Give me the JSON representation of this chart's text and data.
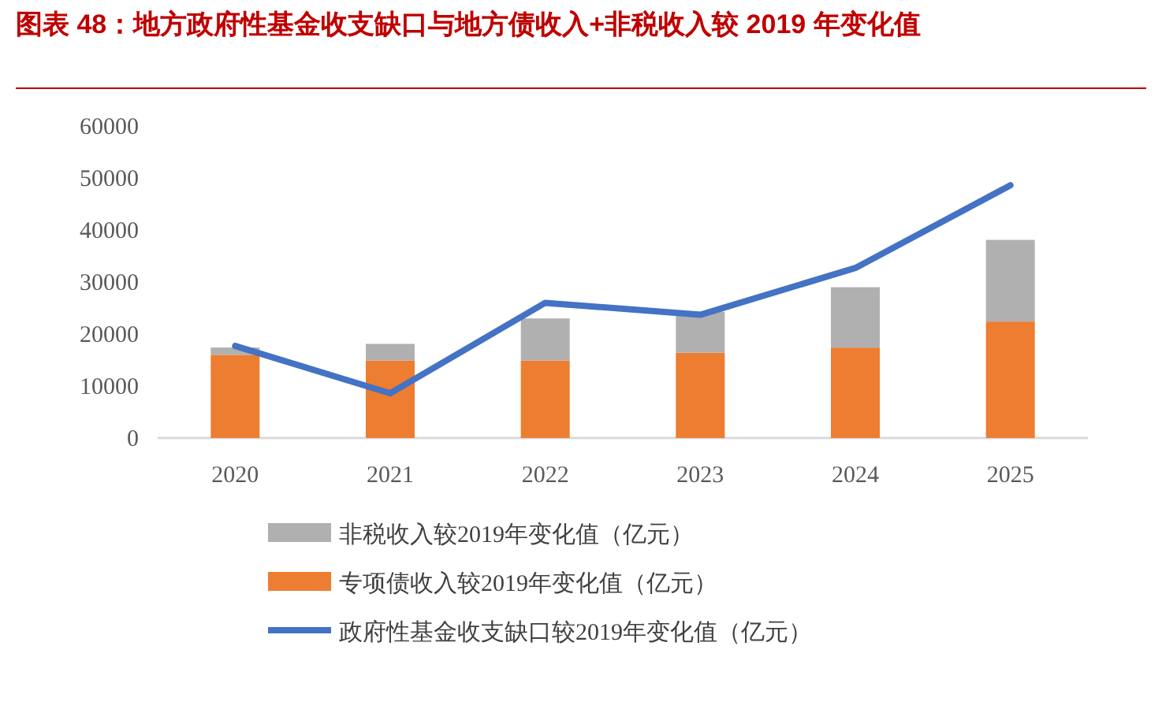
{
  "chart_data": {
    "type": "bar",
    "title": "图表 48：地方政府性基金收支缺口与地方债收入+非税收入较 2019 年变化值",
    "categories": [
      "2020",
      "2021",
      "2022",
      "2023",
      "2024",
      "2025"
    ],
    "stacked": true,
    "series": [
      {
        "name": "专项债收入较2019年变化值（亿元）",
        "color": "#ed7d31",
        "values": [
          16000,
          14900,
          14900,
          16400,
          17400,
          22400
        ]
      },
      {
        "name": "非税收入较2019年变化值（亿元）",
        "color": "#b0b0b0",
        "values": [
          1400,
          3200,
          8100,
          7900,
          11600,
          15700
        ]
      },
      {
        "name": "政府性基金收支缺口较2019年变化值（亿元）",
        "type": "line",
        "color": "#4472c4",
        "values": [
          17700,
          8600,
          26000,
          23700,
          32700,
          48600
        ]
      }
    ],
    "ylim": [
      0,
      60000
    ],
    "yticks": [
      0,
      10000,
      20000,
      30000,
      40000,
      50000,
      60000
    ],
    "grid": false,
    "legend": "bottom"
  }
}
